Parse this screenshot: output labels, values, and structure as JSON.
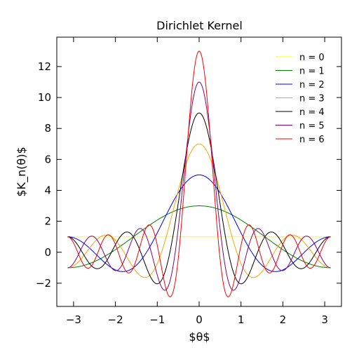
{
  "chart_data": {
    "type": "line",
    "title": "Dirichlet Kernel",
    "xlabel": "$θ$",
    "ylabel": "$K_n(θ)$",
    "xlim": [
      -3.4,
      3.4
    ],
    "ylim": [
      -3.5,
      13.9
    ],
    "x_domain": [
      -3.14159,
      3.14159
    ],
    "formula_text": "",
    "xticks": [
      -3,
      -2,
      -1,
      0,
      1,
      2,
      3
    ],
    "xtick_labels": [
      "−3",
      "−2",
      "−1",
      "0",
      "1",
      "2",
      "3"
    ],
    "yticks": [
      -2,
      0,
      2,
      4,
      6,
      8,
      10,
      12
    ],
    "ytick_labels": [
      "−2",
      "0",
      "2",
      "4",
      "6",
      "8",
      "10",
      "12"
    ],
    "grid": false,
    "legend_position": "top-right",
    "series": [
      {
        "name": "n = 0",
        "n": 0,
        "color": "#ffff00"
      },
      {
        "name": "n = 1",
        "n": 1,
        "color": "#008000"
      },
      {
        "name": "n = 2",
        "n": 2,
        "color": "#0000ff"
      },
      {
        "name": "n = 3",
        "n": 3,
        "color": "#ffa500"
      },
      {
        "name": "n = 4",
        "n": 4,
        "color": "#000000"
      },
      {
        "name": "n = 5",
        "n": 5,
        "color": "#800080"
      },
      {
        "name": "n = 6",
        "n": 6,
        "color": "#ff0000"
      }
    ]
  }
}
